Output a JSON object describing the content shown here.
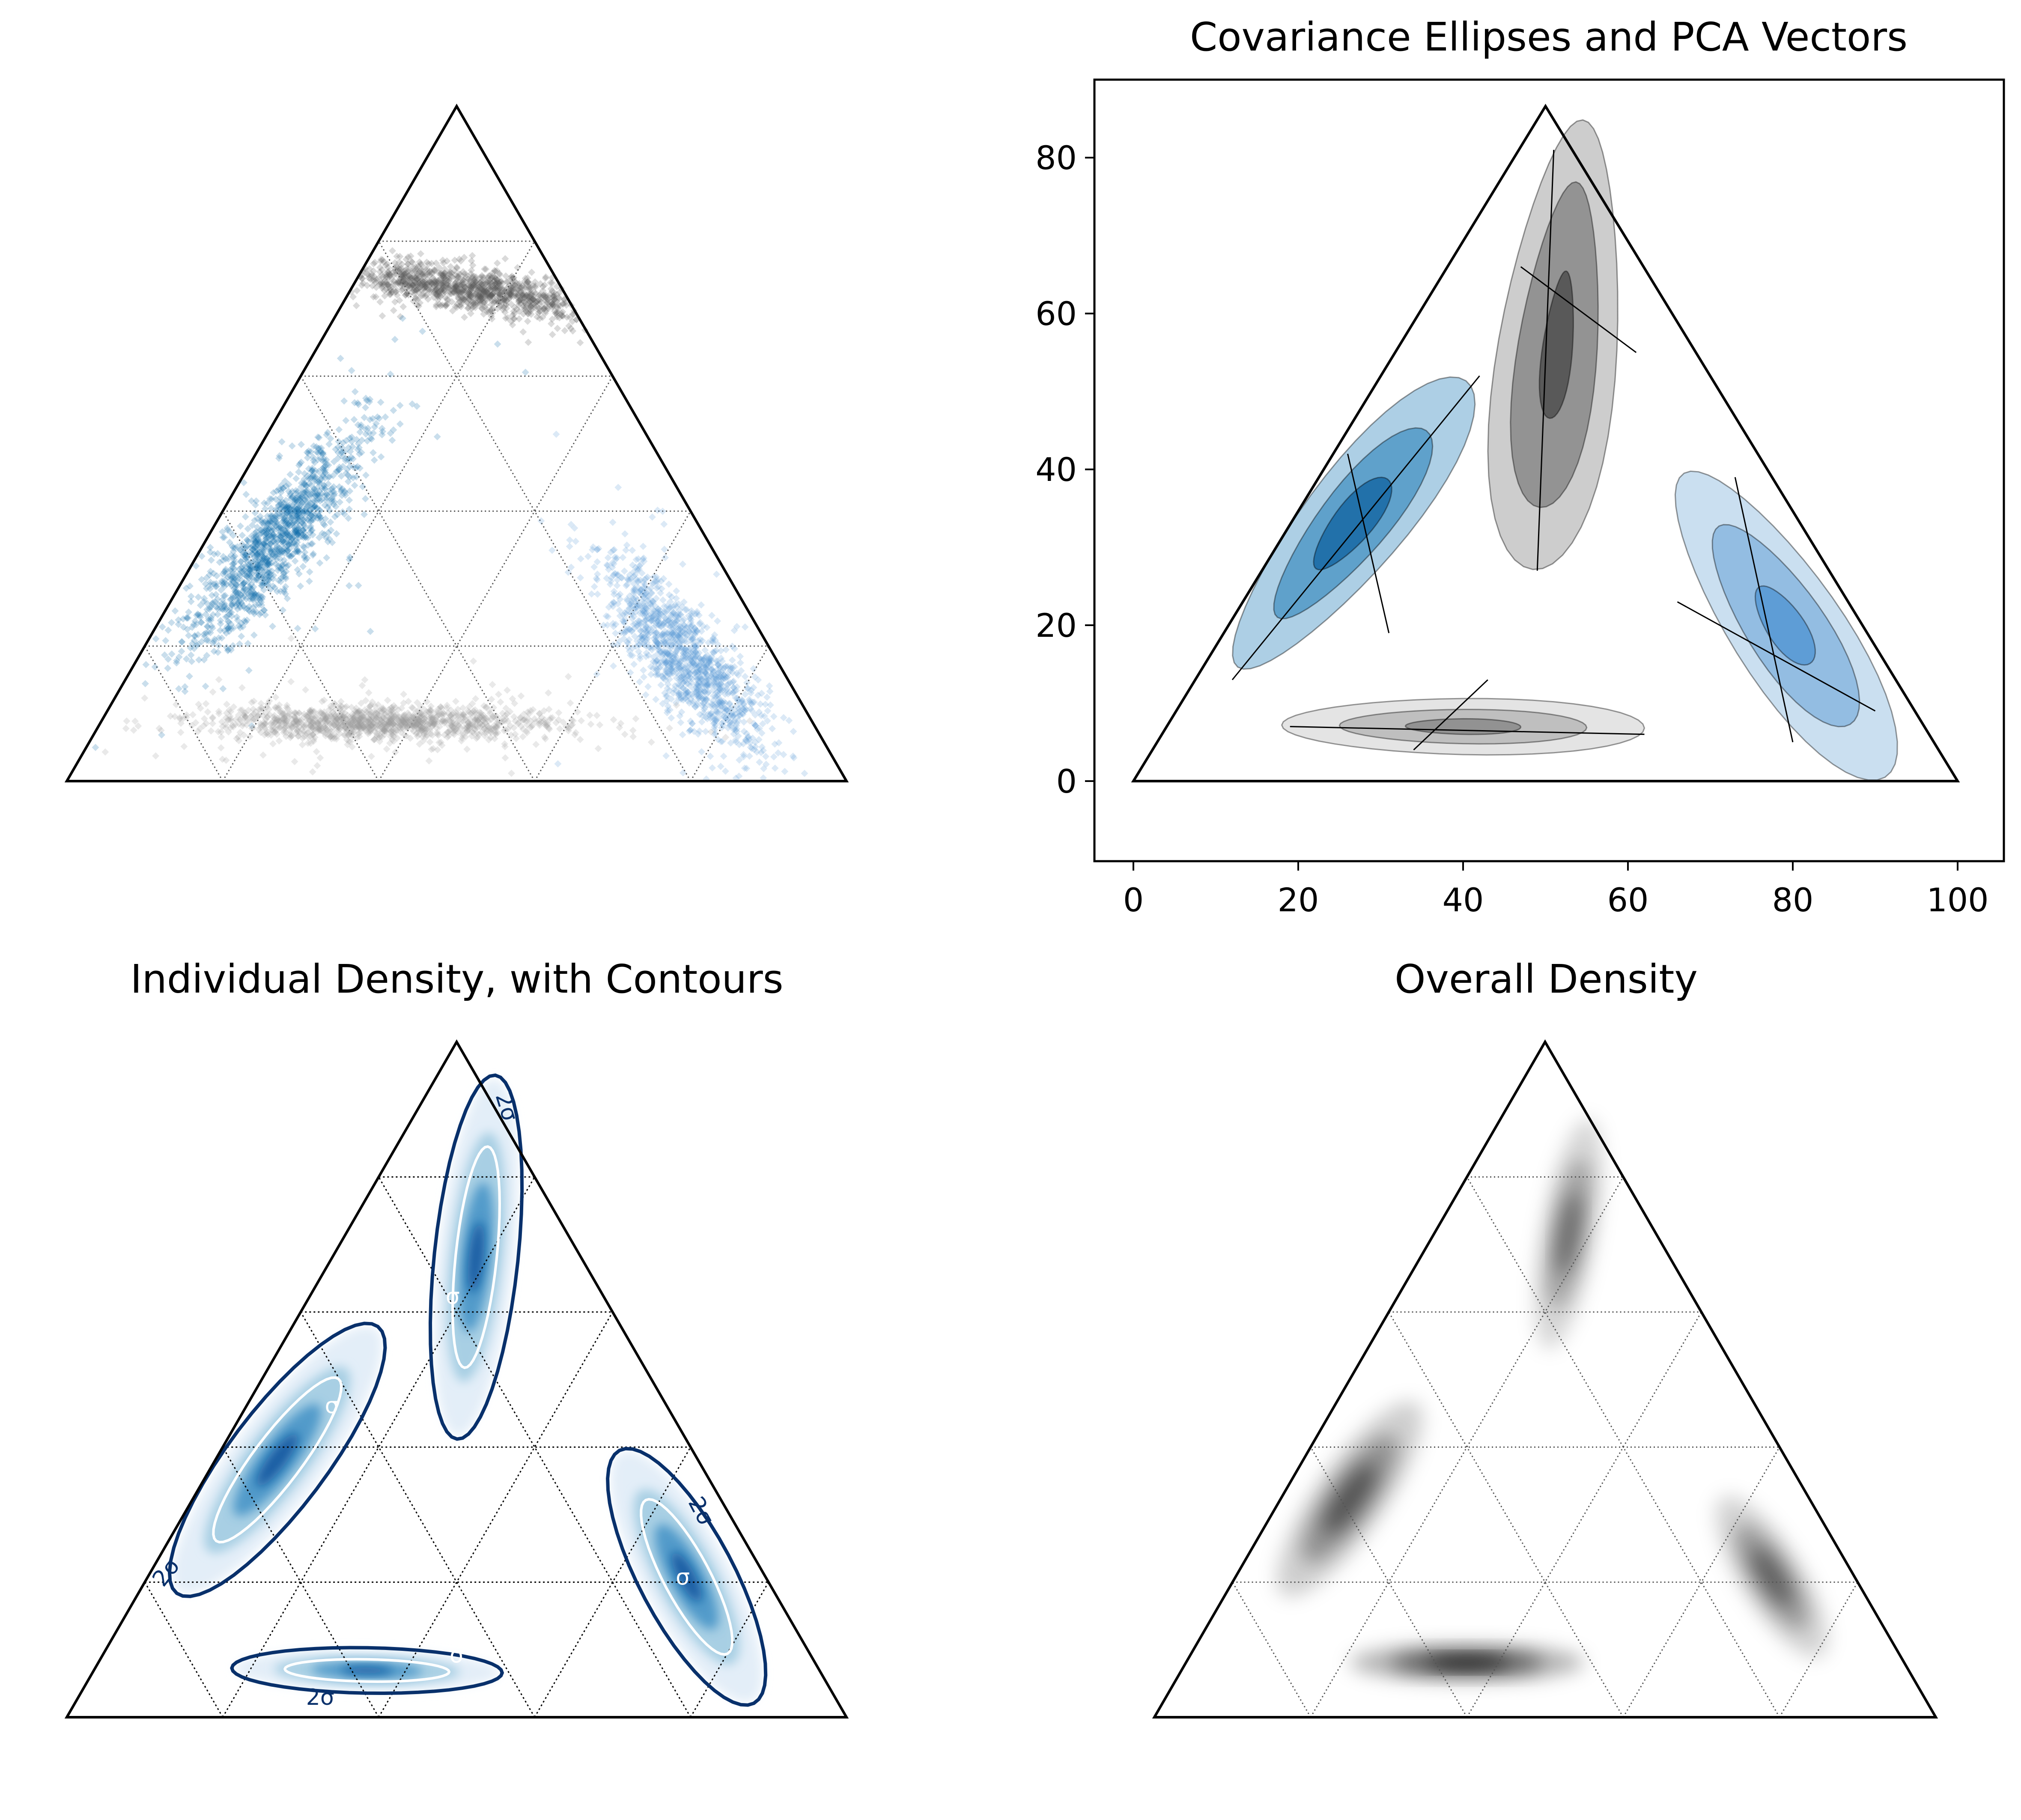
{
  "chart_data": [
    {
      "type": "scatter",
      "panel": "top-left",
      "title": "",
      "ternary": true,
      "grid": true,
      "series": [
        {
          "id": "left-cluster",
          "color": "#0b6aa8",
          "mean": [
            25,
            30
          ],
          "n": 2600
        },
        {
          "id": "top-cluster",
          "color": "#555555",
          "mean": [
            52,
            63
          ],
          "n": 2600
        },
        {
          "id": "right-cluster",
          "color": "#5b9bd5",
          "mean": [
            78,
            16
          ],
          "n": 2600
        },
        {
          "id": "bottom-cluster",
          "color": "#9a9a9a",
          "mean": [
            40,
            7
          ],
          "n": 2600
        }
      ]
    },
    {
      "type": "area",
      "panel": "top-right",
      "title": "Covariance Ellipses and PCA Vectors",
      "xlim": [
        -5,
        105
      ],
      "ylim": [
        -10,
        90
      ],
      "xticks": [
        0,
        20,
        40,
        60,
        80,
        100
      ],
      "yticks": [
        0,
        20,
        40,
        60,
        80
      ],
      "grid": false,
      "series": [
        {
          "id": "left",
          "fills": [
            "#a6cbe3",
            "#5b9ec9",
            "#1f6fa8"
          ],
          "mean": [
            26,
            30
          ],
          "pca_axes": [
            [
              [
                12,
                13
              ],
              [
                42,
                52
              ]
            ],
            [
              [
                26,
                42
              ],
              [
                31,
                19
              ]
            ]
          ]
        },
        {
          "id": "top",
          "fills": [
            "#c9c9c9",
            "#8f8f8f",
            "#555555"
          ],
          "mean": [
            52,
            60
          ],
          "pca_axes": [
            [
              [
                51,
                81
              ],
              [
                49,
                27
              ]
            ],
            [
              [
                47,
                66
              ],
              [
                61,
                55
              ]
            ]
          ]
        },
        {
          "id": "right",
          "fills": [
            "#c6dcef",
            "#8fbbe0",
            "#5b9bd5"
          ],
          "mean": [
            78,
            16
          ],
          "pca_axes": [
            [
              [
                73,
                39
              ],
              [
                80,
                5
              ]
            ],
            [
              [
                66,
                23
              ],
              [
                90,
                9
              ]
            ]
          ]
        },
        {
          "id": "bottom",
          "fills": [
            "#e2e2e2",
            "#bdbdbd",
            "#8f8f8f"
          ],
          "mean": [
            39,
            7
          ],
          "pca_axes": [
            [
              [
                19,
                7
              ],
              [
                62,
                6
              ]
            ],
            [
              [
                34,
                4
              ],
              [
                43,
                13
              ]
            ]
          ]
        }
      ]
    },
    {
      "type": "heatmap",
      "panel": "bottom-left",
      "title": "Individual Density, with Contours",
      "colormap": "Blues",
      "contour_labels": [
        "2σ",
        "2σ",
        "2σ",
        "2σ",
        "σ",
        "σ",
        "σ",
        "σ"
      ],
      "grid": true
    },
    {
      "type": "heatmap",
      "panel": "bottom-right",
      "title": "Overall Density",
      "colormap": "Greys",
      "grid": true
    }
  ]
}
